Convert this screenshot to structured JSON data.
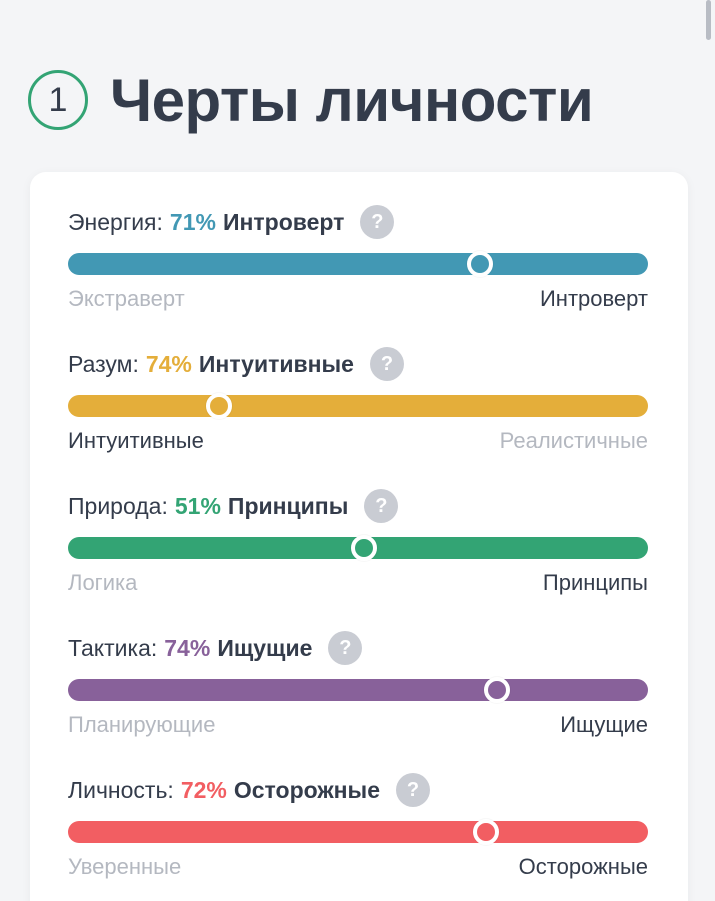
{
  "header": {
    "step_number": "1",
    "title": "Черты личности"
  },
  "traits": [
    {
      "name": "Энергия:",
      "percent": "71%",
      "percent_value": 71,
      "result": "Интроверт",
      "left_label": "Экстраверт",
      "right_label": "Интроверт",
      "dominant_side": "right",
      "color": "#4298b4",
      "help_icon": "question-icon"
    },
    {
      "name": "Разум:",
      "percent": "74%",
      "percent_value": 74,
      "result": "Интуитивные",
      "left_label": "Интуитивные",
      "right_label": "Реалистичные",
      "dominant_side": "left",
      "color": "#e4ae3a",
      "help_icon": "question-icon"
    },
    {
      "name": "Природа:",
      "percent": "51%",
      "percent_value": 51,
      "result": "Принципы",
      "left_label": "Логика",
      "right_label": "Принципы",
      "dominant_side": "right",
      "color": "#33a474",
      "help_icon": "question-icon"
    },
    {
      "name": "Тактика:",
      "percent": "74%",
      "percent_value": 74,
      "result": "Ищущие",
      "left_label": "Планирующие",
      "right_label": "Ищущие",
      "dominant_side": "right",
      "color": "#88619a",
      "help_icon": "question-icon"
    },
    {
      "name": "Личность:",
      "percent": "72%",
      "percent_value": 72,
      "result": "Осторожные",
      "left_label": "Уверенные",
      "right_label": "Осторожные",
      "dominant_side": "right",
      "color": "#f25e62",
      "help_icon": "question-icon"
    }
  ],
  "help_glyph": "?",
  "accent_color": "#33a474"
}
